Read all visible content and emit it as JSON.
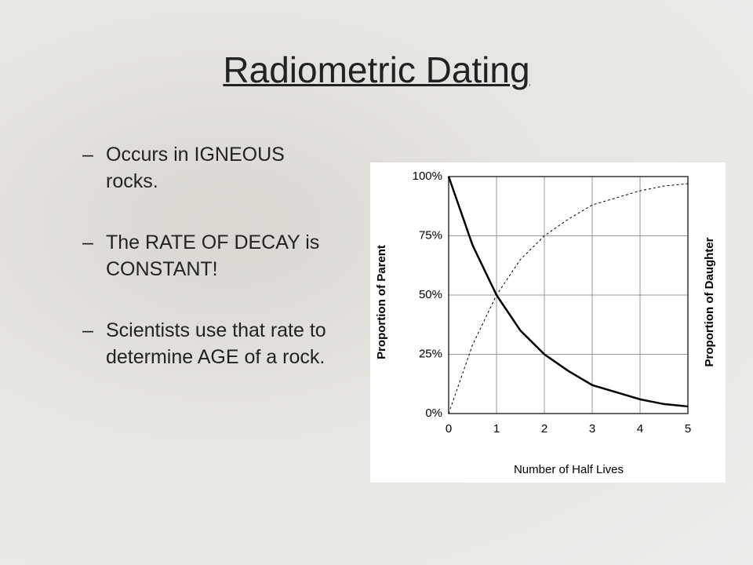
{
  "slide": {
    "title": "Radiometric Dating",
    "bullets": [
      "Occurs in IGNEOUS rocks.",
      "The RATE OF DECAY is CONSTANT!",
      "Scientists use that rate to determine AGE of a rock."
    ]
  },
  "chart_data": {
    "type": "line",
    "x_label": "Number of Half Lives",
    "y_label": "Proportion of Parent",
    "y2_label": "Proportion of Daughter",
    "x": [
      0,
      0.5,
      1,
      1.5,
      2,
      2.5,
      3,
      3.5,
      4,
      4.5,
      5
    ],
    "series": [
      {
        "color": "#000000",
        "style": "solid",
        "values": [
          100,
          71,
          50,
          35,
          25,
          18,
          12,
          9,
          6,
          4,
          3
        ]
      },
      {
        "color": "#000000",
        "style": "dashed",
        "values": [
          0,
          29,
          50,
          65,
          75,
          82,
          88,
          91,
          94,
          96,
          97
        ]
      }
    ],
    "xlim": [
      0,
      5
    ],
    "xticks": [
      0,
      1,
      2,
      3,
      4,
      5
    ],
    "ylim": [
      0,
      100
    ],
    "yticks": [
      {
        "value": 0,
        "label": "0%"
      },
      {
        "value": 25,
        "label": "25%"
      },
      {
        "value": 50,
        "label": "50%"
      },
      {
        "value": 75,
        "label": "75%"
      },
      {
        "value": 100,
        "label": "100%"
      }
    ],
    "grid": true
  }
}
